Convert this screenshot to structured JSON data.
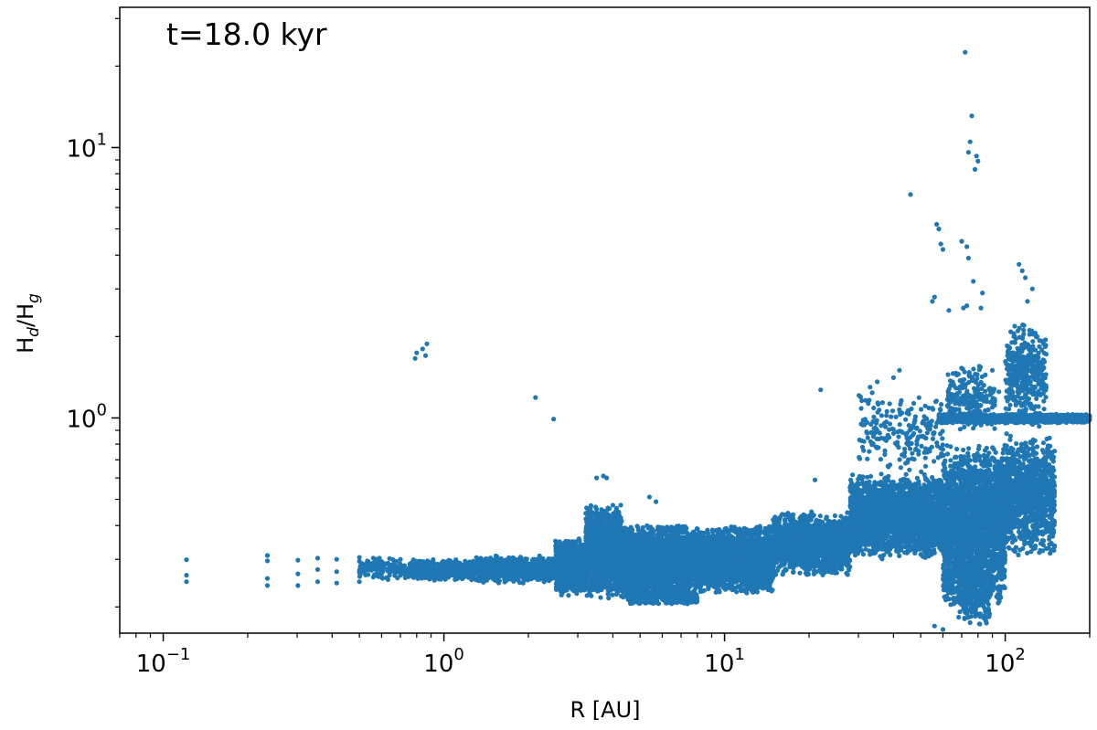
{
  "chart_data": {
    "type": "scatter",
    "annotation": "t=18.0 kyr",
    "xlabel": {
      "base": "R [AU]"
    },
    "ylabel": {
      "base": "H",
      "sub1": "d",
      "mid": "/H",
      "sub2": "g"
    },
    "xscale": "log",
    "yscale": "log",
    "xlim": [
      0.07,
      200
    ],
    "ylim": [
      0.16,
      33
    ],
    "x_ticks": [
      {
        "value": 0.1,
        "base": "10",
        "exp": "−1"
      },
      {
        "value": 1,
        "base": "10",
        "exp": "0"
      },
      {
        "value": 10,
        "base": "10",
        "exp": "1"
      },
      {
        "value": 100,
        "base": "10",
        "exp": "2"
      }
    ],
    "y_ticks": [
      {
        "value": 1,
        "base": "10",
        "exp": "0"
      },
      {
        "value": 10,
        "base": "10",
        "exp": "1"
      }
    ],
    "grid": false,
    "marker_color": "#1f77b4",
    "series": [
      {
        "points": [
          [
            0.121,
            0.299
          ],
          [
            0.121,
            0.262
          ],
          [
            0.121,
            0.248
          ],
          [
            0.235,
            0.31
          ],
          [
            0.235,
            0.296
          ],
          [
            0.235,
            0.255
          ],
          [
            0.235,
            0.24
          ],
          [
            0.302,
            0.298
          ],
          [
            0.302,
            0.265
          ],
          [
            0.302,
            0.24
          ],
          [
            0.355,
            0.303
          ],
          [
            0.355,
            0.275
          ],
          [
            0.355,
            0.248
          ],
          [
            0.415,
            0.3
          ],
          [
            0.415,
            0.27
          ],
          [
            0.415,
            0.245
          ],
          [
            0.5,
            0.305
          ],
          [
            0.5,
            0.295
          ],
          [
            0.5,
            0.27
          ],
          [
            0.5,
            0.248
          ],
          [
            0.56,
            0.303
          ],
          [
            0.56,
            0.28
          ],
          [
            0.56,
            0.258
          ],
          [
            0.64,
            0.302
          ],
          [
            0.64,
            0.285
          ],
          [
            0.64,
            0.262
          ],
          [
            0.7,
            0.3
          ],
          [
            0.7,
            0.282
          ],
          [
            0.7,
            0.262
          ],
          [
            0.79,
            1.66
          ],
          [
            0.8,
            1.74
          ],
          [
            0.84,
            1.8
          ],
          [
            0.87,
            1.88
          ],
          [
            0.86,
            1.7
          ],
          [
            2.12,
            1.19
          ],
          [
            2.46,
            0.99
          ],
          [
            3.5,
            0.6
          ],
          [
            3.7,
            0.61
          ],
          [
            3.8,
            0.6
          ],
          [
            5.4,
            0.51
          ],
          [
            5.7,
            0.49
          ],
          [
            14.9,
            0.42
          ],
          [
            15.8,
            0.43
          ],
          [
            22,
            1.27
          ],
          [
            21,
            0.59
          ],
          [
            33,
            1.3
          ],
          [
            35,
            1.36
          ],
          [
            40,
            1.41
          ],
          [
            42,
            1.5
          ],
          [
            46,
            6.7
          ],
          [
            57,
            5.2
          ],
          [
            58,
            5.0
          ],
          [
            59,
            4.4
          ],
          [
            60,
            4.2
          ],
          [
            56,
            2.8
          ],
          [
            55,
            2.7
          ],
          [
            72,
            22.5
          ],
          [
            76,
            13.1
          ],
          [
            75,
            10.5
          ],
          [
            74,
            9.6
          ],
          [
            79,
            9.3
          ],
          [
            80,
            8.9
          ],
          [
            78,
            8.3
          ],
          [
            70,
            4.5
          ],
          [
            73,
            4.3
          ],
          [
            74,
            3.9
          ],
          [
            77,
            3.2
          ],
          [
            73,
            2.6
          ],
          [
            71,
            2.55
          ],
          [
            82,
            2.55
          ],
          [
            83,
            2.9
          ],
          [
            63,
            2.5
          ],
          [
            90,
            1.5
          ],
          [
            95,
            1.25
          ],
          [
            112,
            3.7
          ],
          [
            115,
            3.5
          ],
          [
            118,
            3.3
          ],
          [
            125,
            3.0
          ],
          [
            120,
            2.7
          ],
          [
            130,
            2.0
          ],
          [
            56,
            0.17
          ],
          [
            60,
            0.165
          ],
          [
            75,
            0.175
          ],
          [
            73,
            0.19
          ],
          [
            78,
            0.2
          ]
        ],
        "bands": [
          {
            "x": [
              0.5,
              0.75
            ],
            "y": [
              0.25,
              0.305
            ],
            "n": 150
          },
          {
            "x": [
              0.75,
              1.3
            ],
            "y": [
              0.25,
              0.3
            ],
            "n": 500
          },
          {
            "x": [
              1.3,
              2.5
            ],
            "y": [
              0.245,
              0.31
            ],
            "n": 800
          },
          {
            "x": [
              2.5,
              3.2
            ],
            "y": [
              0.22,
              0.36
            ],
            "n": 900
          },
          {
            "x": [
              3.2,
              4.3
            ],
            "y": [
              0.215,
              0.48
            ],
            "n": 1500
          },
          {
            "x": [
              4.3,
              7.5
            ],
            "y": [
              0.21,
              0.41
            ],
            "n": 2200
          },
          {
            "x": [
              7.5,
              15
            ],
            "y": [
              0.225,
              0.4
            ],
            "n": 2500
          },
          {
            "x": [
              15,
              28
            ],
            "y": [
              0.26,
              0.45
            ],
            "n": 1500
          },
          {
            "x": [
              28,
              60
            ],
            "y": [
              0.3,
              0.62
            ],
            "n": 2500
          },
          {
            "x": [
              60,
              100
            ],
            "y": [
              0.2,
              0.8
            ],
            "n": 2500
          },
          {
            "x": [
              100,
              150
            ],
            "y": [
              0.3,
              0.9
            ],
            "n": 1000
          },
          {
            "x": [
              58,
              200
            ],
            "y": [
              0.955,
              1.035
            ],
            "n": 1700
          },
          {
            "x": [
              30,
              60
            ],
            "y": [
              0.6,
              1.25
            ],
            "n": 220
          },
          {
            "x": [
              100,
              140
            ],
            "y": [
              0.9,
              2.3
            ],
            "n": 400
          },
          {
            "x": [
              62,
              92
            ],
            "y": [
              0.9,
              1.6
            ],
            "n": 250
          },
          {
            "x": [
              68,
              88
            ],
            "y": [
              0.17,
              0.3
            ],
            "n": 250
          },
          {
            "x": [
              4.5,
              8.0
            ],
            "y": [
              0.205,
              0.23
            ],
            "n": 400
          }
        ]
      }
    ]
  }
}
